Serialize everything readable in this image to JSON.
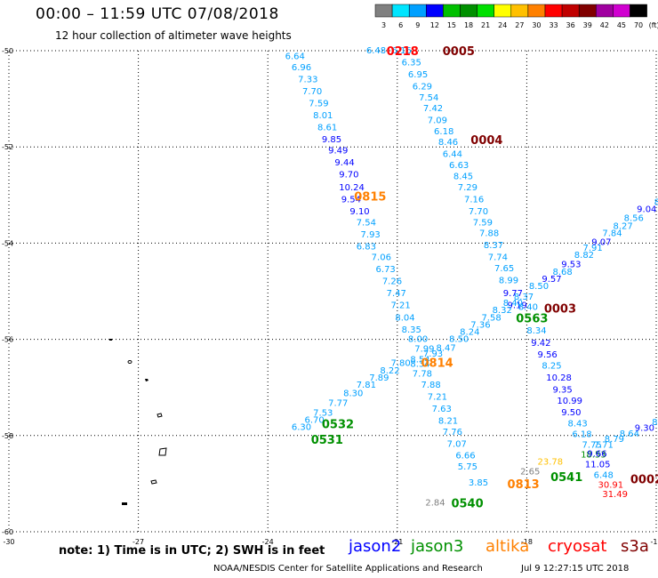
{
  "header": {
    "title": "00:00 – 11:59 UTC 07/08/2018",
    "subtitle": "12 hour collection of altimeter wave heights"
  },
  "legend": {
    "unit_label": "(ft)",
    "bins": [
      {
        "label": "3",
        "color": "#808080"
      },
      {
        "label": "6",
        "color": "#00e5ff"
      },
      {
        "label": "9",
        "color": "#00a0ff"
      },
      {
        "label": "12",
        "color": "#0000ff"
      },
      {
        "label": "15",
        "color": "#00c000"
      },
      {
        "label": "18",
        "color": "#009000"
      },
      {
        "label": "21",
        "color": "#00e000"
      },
      {
        "label": "24",
        "color": "#ffff00"
      },
      {
        "label": "27",
        "color": "#ffc000"
      },
      {
        "label": "30",
        "color": "#ff8000"
      },
      {
        "label": "33",
        "color": "#ff0000"
      },
      {
        "label": "36",
        "color": "#c00000"
      },
      {
        "label": "39",
        "color": "#800000"
      },
      {
        "label": "42",
        "color": "#a000a0"
      },
      {
        "label": "45",
        "color": "#d000d0"
      },
      {
        "label": "70",
        "color": "#000000"
      }
    ]
  },
  "chart_data": {
    "type": "scatter",
    "xlim": [
      -30,
      -15
    ],
    "ylim": [
      -60,
      -50
    ],
    "x_ticks": [
      "-30",
      "-27",
      "-24",
      "-21",
      "-18",
      "-15"
    ],
    "y_ticks": [
      "-50",
      "-52",
      "-54",
      "-56",
      "-58",
      "-60"
    ],
    "grid": true,
    "observations": [
      {
        "t": "6.48",
        "c": "#00a0ff",
        "x": -21.72,
        "y": -50.0
      },
      {
        "t": "6.64",
        "c": "#00a0ff",
        "x": -23.6,
        "y": -50.12
      },
      {
        "t": "6.96",
        "c": "#00a0ff",
        "x": -23.45,
        "y": -50.35
      },
      {
        "t": "7.33",
        "c": "#00a0ff",
        "x": -23.3,
        "y": -50.6
      },
      {
        "t": "7.70",
        "c": "#00a0ff",
        "x": -23.2,
        "y": -50.85
      },
      {
        "t": "7.59",
        "c": "#00a0ff",
        "x": -23.05,
        "y": -51.1
      },
      {
        "t": "8.01",
        "c": "#00a0ff",
        "x": -22.95,
        "y": -51.35
      },
      {
        "t": "8.61",
        "c": "#00a0ff",
        "x": -22.85,
        "y": -51.6
      },
      {
        "t": "9.85",
        "c": "#0000ff",
        "x": -22.75,
        "y": -51.85
      },
      {
        "t": "9.49",
        "c": "#0000ff",
        "x": -22.6,
        "y": -52.08
      },
      {
        "t": "9.44",
        "c": "#0000ff",
        "x": -22.45,
        "y": -52.33
      },
      {
        "t": "9.70",
        "c": "#0000ff",
        "x": -22.35,
        "y": -52.58
      },
      {
        "t": "10.24",
        "c": "#0000ff",
        "x": -22.35,
        "y": -52.85
      },
      {
        "t": "9.54",
        "c": "#0000ff",
        "x": -22.3,
        "y": -53.1
      },
      {
        "t": "9.10",
        "c": "#0000ff",
        "x": -22.1,
        "y": -53.35
      },
      {
        "t": "7.54",
        "c": "#00a0ff",
        "x": -21.95,
        "y": -53.58
      },
      {
        "t": "7.93",
        "c": "#00a0ff",
        "x": -21.85,
        "y": -53.83
      },
      {
        "t": "6.83",
        "c": "#00a0ff",
        "x": -21.95,
        "y": -54.08
      },
      {
        "t": "7.06",
        "c": "#00a0ff",
        "x": -21.6,
        "y": -54.3
      },
      {
        "t": "6.73",
        "c": "#00a0ff",
        "x": -21.5,
        "y": -54.55
      },
      {
        "t": "7.26",
        "c": "#00a0ff",
        "x": -21.35,
        "y": -54.8
      },
      {
        "t": "7.47",
        "c": "#00a0ff",
        "x": -21.25,
        "y": -55.05
      },
      {
        "t": "7.21",
        "c": "#00a0ff",
        "x": -21.15,
        "y": -55.3
      },
      {
        "t": "8.04",
        "c": "#00a0ff",
        "x": -21.05,
        "y": -55.55
      },
      {
        "t": "8.35",
        "c": "#00a0ff",
        "x": -20.9,
        "y": -55.8
      },
      {
        "t": "8.00",
        "c": "#00a0ff",
        "x": -20.75,
        "y": -56.0
      },
      {
        "t": "6.16",
        "c": "#00a0ff",
        "x": -21.13,
        "y": -50.0
      },
      {
        "t": "6.35",
        "c": "#00a0ff",
        "x": -20.9,
        "y": -50.25
      },
      {
        "t": "6.95",
        "c": "#00a0ff",
        "x": -20.75,
        "y": -50.5
      },
      {
        "t": "6.29",
        "c": "#00a0ff",
        "x": -20.65,
        "y": -50.75
      },
      {
        "t": "7.54",
        "c": "#00a0ff",
        "x": -20.5,
        "y": -50.98
      },
      {
        "t": "7.42",
        "c": "#00a0ff",
        "x": -20.4,
        "y": -51.2
      },
      {
        "t": "7.09",
        "c": "#00a0ff",
        "x": -20.3,
        "y": -51.45
      },
      {
        "t": "6.18",
        "c": "#00a0ff",
        "x": -20.15,
        "y": -51.68
      },
      {
        "t": "8.46",
        "c": "#00a0ff",
        "x": -20.05,
        "y": -51.9
      },
      {
        "t": "6.44",
        "c": "#00a0ff",
        "x": -19.95,
        "y": -52.15
      },
      {
        "t": "6.63",
        "c": "#00a0ff",
        "x": -19.8,
        "y": -52.38
      },
      {
        "t": "8.45",
        "c": "#00a0ff",
        "x": -19.7,
        "y": -52.62
      },
      {
        "t": "7.29",
        "c": "#00a0ff",
        "x": -19.6,
        "y": -52.85
      },
      {
        "t": "7.16",
        "c": "#00a0ff",
        "x": -19.45,
        "y": -53.1
      },
      {
        "t": "7.70",
        "c": "#00a0ff",
        "x": -19.35,
        "y": -53.35
      },
      {
        "t": "7.59",
        "c": "#00a0ff",
        "x": -19.25,
        "y": -53.58
      },
      {
        "t": "7.88",
        "c": "#00a0ff",
        "x": -19.1,
        "y": -53.8
      },
      {
        "t": "8.37",
        "c": "#00a0ff",
        "x": -19.0,
        "y": -54.05
      },
      {
        "t": "7.74",
        "c": "#00a0ff",
        "x": -18.9,
        "y": -54.3
      },
      {
        "t": "7.65",
        "c": "#00a0ff",
        "x": -18.75,
        "y": -54.53
      },
      {
        "t": "8.99",
        "c": "#00a0ff",
        "x": -18.65,
        "y": -54.78
      },
      {
        "t": "9.77",
        "c": "#0000ff",
        "x": -18.55,
        "y": -55.05
      },
      {
        "t": "9.19",
        "c": "#0000ff",
        "x": -18.45,
        "y": -55.3
      },
      {
        "t": "8.40",
        "c": "#00a0ff",
        "x": -18.2,
        "y": -55.33
      },
      {
        "t": "8.34",
        "c": "#00a0ff",
        "x": -18.0,
        "y": -55.82
      },
      {
        "t": "9.42",
        "c": "#0000ff",
        "x": -17.9,
        "y": -56.08
      },
      {
        "t": "9.56",
        "c": "#0000ff",
        "x": -17.75,
        "y": -56.32
      },
      {
        "t": "8.25",
        "c": "#00a0ff",
        "x": -17.65,
        "y": -56.55
      },
      {
        "t": "10.28",
        "c": "#0000ff",
        "x": -17.55,
        "y": -56.8
      },
      {
        "t": "9.35",
        "c": "#0000ff",
        "x": -17.4,
        "y": -57.05
      },
      {
        "t": "10.99",
        "c": "#0000ff",
        "x": -17.3,
        "y": -57.28
      },
      {
        "t": "9.50",
        "c": "#0000ff",
        "x": -17.2,
        "y": -57.52
      },
      {
        "t": "8.43",
        "c": "#00a0ff",
        "x": -17.05,
        "y": -57.75
      },
      {
        "t": "6.18",
        "c": "#00a0ff",
        "x": -16.95,
        "y": -57.98
      },
      {
        "t": "7.75",
        "c": "#00a0ff",
        "x": -16.72,
        "y": -58.2
      },
      {
        "t": "7.71",
        "c": "#00a0ff",
        "x": -16.45,
        "y": -58.2
      },
      {
        "t": "18.53",
        "c": "#009000",
        "x": -16.75,
        "y": -58.4
      },
      {
        "t": "9.66",
        "c": "#0000ff",
        "x": -16.6,
        "y": -58.38
      },
      {
        "t": "11.05",
        "c": "#0000ff",
        "x": -16.65,
        "y": -58.6
      },
      {
        "t": "6.48",
        "c": "#00a0ff",
        "x": -16.45,
        "y": -58.83
      },
      {
        "t": "30.91",
        "c": "#ff0000",
        "x": -16.35,
        "y": -59.03
      },
      {
        "t": "31.49",
        "c": "#ff0000",
        "x": -16.25,
        "y": -59.22
      },
      {
        "t": "8.79",
        "c": "#00a0ff",
        "x": -16.2,
        "y": -58.08
      },
      {
        "t": "8.64",
        "c": "#00a0ff",
        "x": -15.85,
        "y": -57.97
      },
      {
        "t": "9.30",
        "c": "#0000ff",
        "x": -15.5,
        "y": -57.85
      },
      {
        "t": "8",
        "c": "#00a0ff",
        "x": -15.1,
        "y": -57.73
      },
      {
        "t": "7.99",
        "c": "#00a0ff",
        "x": -20.6,
        "y": -56.2
      },
      {
        "t": "7.93",
        "c": "#00a0ff",
        "x": -20.4,
        "y": -56.3
      },
      {
        "t": "8.47",
        "c": "#00a0ff",
        "x": -20.1,
        "y": -56.18
      },
      {
        "t": "8.54",
        "c": "#00a0ff",
        "x": -20.7,
        "y": -56.42
      },
      {
        "t": "8.34",
        "c": "#00a0ff",
        "x": -20.7,
        "y": -56.52
      },
      {
        "t": "8.50",
        "c": "#00a0ff",
        "x": -19.8,
        "y": -56.0
      },
      {
        "t": "8.24",
        "c": "#00a0ff",
        "x": -19.55,
        "y": -55.85
      },
      {
        "t": "7.36",
        "c": "#00a0ff",
        "x": -19.3,
        "y": -55.7
      },
      {
        "t": "7.58",
        "c": "#00a0ff",
        "x": -19.05,
        "y": -55.55
      },
      {
        "t": "8.32",
        "c": "#00a0ff",
        "x": -18.8,
        "y": -55.4
      },
      {
        "t": "8.40",
        "c": "#00a0ff",
        "x": -18.55,
        "y": -55.25
      },
      {
        "t": "8.37",
        "c": "#00a0ff",
        "x": -18.3,
        "y": -55.12
      },
      {
        "t": "8.50",
        "c": "#00a0ff",
        "x": -17.95,
        "y": -54.9
      },
      {
        "t": "9.57",
        "c": "#0000ff",
        "x": -17.65,
        "y": -54.75
      },
      {
        "t": "8.68",
        "c": "#00a0ff",
        "x": -17.4,
        "y": -54.6
      },
      {
        "t": "9.53",
        "c": "#0000ff",
        "x": -17.2,
        "y": -54.45
      },
      {
        "t": "8.82",
        "c": "#00a0ff",
        "x": -16.9,
        "y": -54.25
      },
      {
        "t": "7.91",
        "c": "#00a0ff",
        "x": -16.7,
        "y": -54.1
      },
      {
        "t": "9.07",
        "c": "#0000ff",
        "x": -16.5,
        "y": -53.98
      },
      {
        "t": "7.84",
        "c": "#00a0ff",
        "x": -16.25,
        "y": -53.8
      },
      {
        "t": "8.27",
        "c": "#00a0ff",
        "x": -16.0,
        "y": -53.65
      },
      {
        "t": "8.56",
        "c": "#00a0ff",
        "x": -15.75,
        "y": -53.48
      },
      {
        "t": "9.04",
        "c": "#0000ff",
        "x": -15.45,
        "y": -53.3
      },
      {
        "t": "8.41",
        "c": "#00a0ff",
        "x": -15.05,
        "y": -53.15
      },
      {
        "t": "7.80",
        "c": "#00a0ff",
        "x": -21.15,
        "y": -56.5
      },
      {
        "t": "8.22",
        "c": "#00a0ff",
        "x": -21.4,
        "y": -56.65
      },
      {
        "t": "7.89",
        "c": "#00a0ff",
        "x": -21.65,
        "y": -56.8
      },
      {
        "t": "7.81",
        "c": "#00a0ff",
        "x": -21.95,
        "y": -56.95
      },
      {
        "t": "8.30",
        "c": "#00a0ff",
        "x": -22.25,
        "y": -57.13
      },
      {
        "t": "7.77",
        "c": "#00a0ff",
        "x": -22.6,
        "y": -57.33
      },
      {
        "t": "7.53",
        "c": "#00a0ff",
        "x": -22.95,
        "y": -57.53
      },
      {
        "t": "6.70",
        "c": "#00a0ff",
        "x": -23.15,
        "y": -57.68
      },
      {
        "t": "6.30",
        "c": "#00a0ff",
        "x": -23.45,
        "y": -57.83
      },
      {
        "t": "7.78",
        "c": "#00a0ff",
        "x": -20.65,
        "y": -56.72
      },
      {
        "t": "7.88",
        "c": "#00a0ff",
        "x": -20.45,
        "y": -56.95
      },
      {
        "t": "7.21",
        "c": "#00a0ff",
        "x": -20.3,
        "y": -57.2
      },
      {
        "t": "7.63",
        "c": "#00a0ff",
        "x": -20.2,
        "y": -57.45
      },
      {
        "t": "8.21",
        "c": "#00a0ff",
        "x": -20.05,
        "y": -57.7
      },
      {
        "t": "7.76",
        "c": "#00a0ff",
        "x": -19.95,
        "y": -57.93
      },
      {
        "t": "7.07",
        "c": "#00a0ff",
        "x": -19.85,
        "y": -58.18
      },
      {
        "t": "6.66",
        "c": "#00a0ff",
        "x": -19.65,
        "y": -58.42
      },
      {
        "t": "5.75",
        "c": "#00a0ff",
        "x": -19.6,
        "y": -58.65
      },
      {
        "t": "3.85",
        "c": "#00a0ff",
        "x": -19.35,
        "y": -58.98
      },
      {
        "t": "2.84",
        "c": "#808080",
        "x": -20.35,
        "y": -59.4
      },
      {
        "t": "2.65",
        "c": "#808080",
        "x": -18.15,
        "y": -58.75
      },
      {
        "t": "23.78",
        "c": "#ffc000",
        "x": -17.75,
        "y": -58.55
      },
      {
        "t": "0218",
        "c": "#ff0000",
        "x": -21.25,
        "y": -50.0,
        "big": true
      },
      {
        "t": "0005",
        "c": "#800000",
        "x": -19.95,
        "y": -50.0,
        "big": true
      },
      {
        "t": "0004",
        "c": "#800000",
        "x": -19.3,
        "y": -51.85,
        "big": true
      },
      {
        "t": "0815",
        "c": "#ff8000",
        "x": -22.0,
        "y": -53.02,
        "big": true
      },
      {
        "t": "0003",
        "c": "#800000",
        "x": -17.6,
        "y": -55.35,
        "big": true
      },
      {
        "t": "0563",
        "c": "#009000",
        "x": -18.25,
        "y": -55.55,
        "big": true
      },
      {
        "t": "0814",
        "c": "#ff8000",
        "x": -20.45,
        "y": -56.48,
        "big": true
      },
      {
        "t": "0532",
        "c": "#009000",
        "x": -22.75,
        "y": -57.75,
        "big": true
      },
      {
        "t": "0531",
        "c": "#009000",
        "x": -23.0,
        "y": -58.08,
        "big": true
      },
      {
        "t": "0541",
        "c": "#009000",
        "x": -17.45,
        "y": -58.85,
        "big": true
      },
      {
        "t": "0813",
        "c": "#ff8000",
        "x": -18.45,
        "y": -59.0,
        "big": true
      },
      {
        "t": "0540",
        "c": "#009000",
        "x": -19.75,
        "y": -59.4,
        "big": true
      },
      {
        "t": "0002",
        "c": "#800000",
        "x": -15.6,
        "y": -58.9,
        "big": true
      }
    ]
  },
  "footer": {
    "note": "note: 1) Time is in UTC; 2) SWH is in feet",
    "satellites": [
      {
        "name": "jason2",
        "color": "#0000ff"
      },
      {
        "name": "jason3",
        "color": "#009000"
      },
      {
        "name": "altika",
        "color": "#ff8000"
      },
      {
        "name": "cryosat",
        "color": "#ff0000"
      },
      {
        "name": "s3a",
        "color": "#800000"
      }
    ],
    "credit": "NOAA/NESDIS Center for Satellite Applications and Research",
    "timestamp": "Jul  9 12:27:15 UTC 2018"
  }
}
